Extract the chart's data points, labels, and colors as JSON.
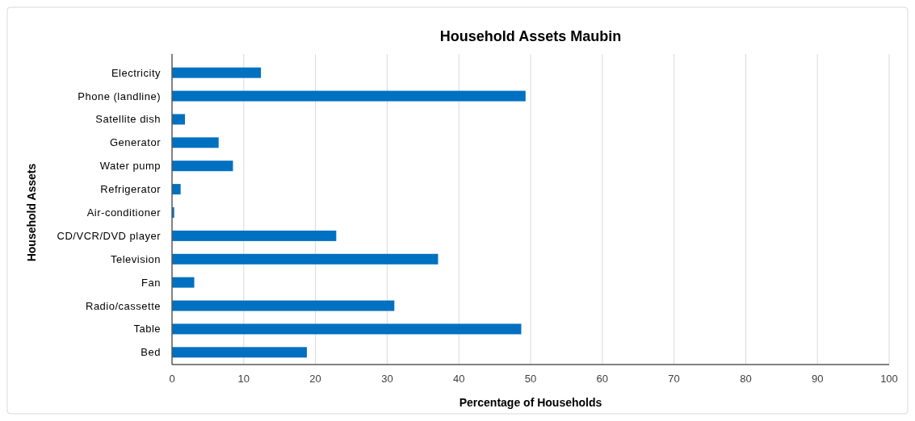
{
  "chart_data": {
    "type": "bar",
    "orientation": "horizontal",
    "title": "Household Assets Maubin",
    "xlabel": "Percentage of Households",
    "ylabel": "Household Assets",
    "categories": [
      "Electricity",
      "Phone (landline)",
      "Satellite dish",
      "Generator",
      "Water pump",
      "Refrigerator",
      "Air-conditioner",
      "CD/VCR/DVD player",
      "Television",
      "Fan",
      "Radio/cassette",
      "Table",
      "Bed"
    ],
    "values": [
      12.4,
      49.3,
      1.8,
      6.5,
      8.5,
      1.2,
      0.3,
      22.9,
      37.1,
      3.1,
      31.0,
      48.7,
      18.8
    ],
    "color": "#0070c0",
    "xlim": [
      0,
      100
    ],
    "xticks": [
      0,
      10,
      20,
      30,
      40,
      50,
      60,
      70,
      80,
      90,
      100
    ],
    "grid": "x"
  }
}
